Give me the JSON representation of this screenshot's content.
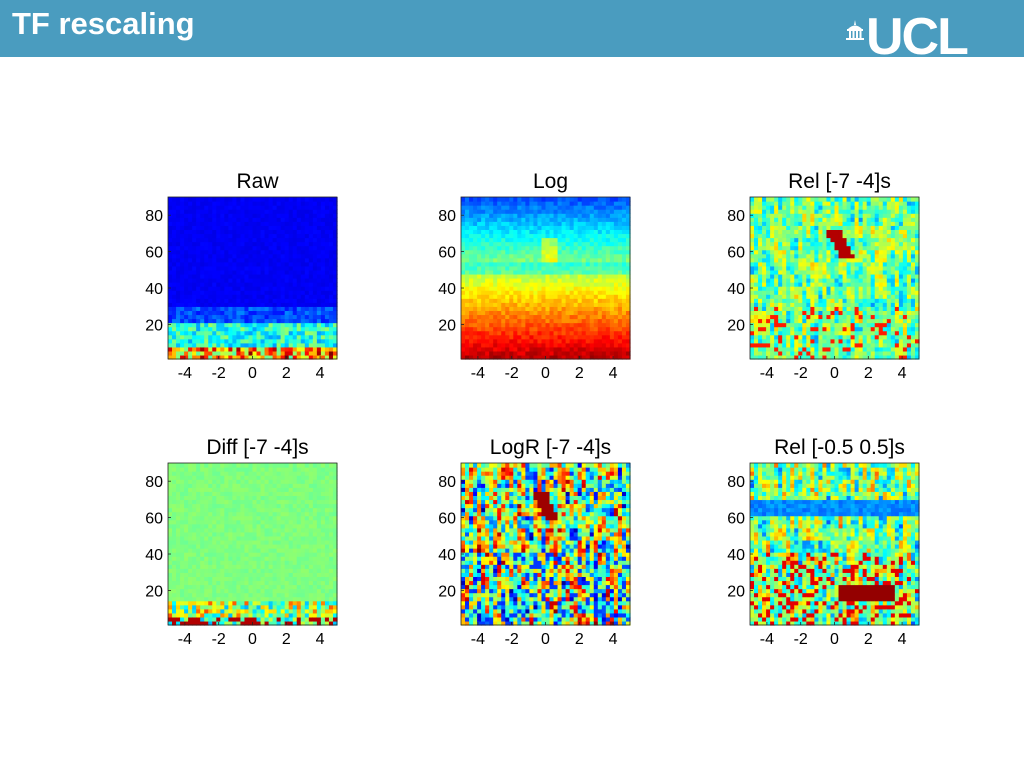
{
  "slide": {
    "title": "TF rescaling",
    "logo_text": "UCL"
  },
  "colors": {
    "header": "#4a9cbf",
    "header_text": "#ffffff",
    "colormap": "jet"
  },
  "chart_data": [
    {
      "type": "heatmap",
      "title": "Raw",
      "x_ticks": [
        "-4",
        "-2",
        "0",
        "2",
        "4"
      ],
      "y_ticks": [
        "20",
        "40",
        "60",
        "80"
      ],
      "xlim": [
        -5,
        5
      ],
      "ylim": [
        1,
        90
      ],
      "x_values": [
        -4,
        -2,
        0,
        2,
        4
      ],
      "y_values": [
        20,
        40,
        60,
        80
      ],
      "pattern": "raw"
    },
    {
      "type": "heatmap",
      "title": "Log",
      "x_ticks": [
        "-4",
        "-2",
        "0",
        "2",
        "4"
      ],
      "y_ticks": [
        "20",
        "40",
        "60",
        "80"
      ],
      "xlim": [
        -5,
        5
      ],
      "ylim": [
        1,
        90
      ],
      "x_values": [
        -4,
        -2,
        0,
        2,
        4
      ],
      "y_values": [
        20,
        40,
        60,
        80
      ],
      "pattern": "log"
    },
    {
      "type": "heatmap",
      "title": "Rel [-7 -4]s",
      "x_ticks": [
        "-4",
        "-2",
        "0",
        "2",
        "4"
      ],
      "y_ticks": [
        "20",
        "40",
        "60",
        "80"
      ],
      "xlim": [
        -5,
        5
      ],
      "ylim": [
        1,
        90
      ],
      "x_values": [
        -4,
        -2,
        0,
        2,
        4
      ],
      "y_values": [
        20,
        40,
        60,
        80
      ],
      "pattern": "rel"
    },
    {
      "type": "heatmap",
      "title": "Diff [-7 -4]s",
      "x_ticks": [
        "-4",
        "-2",
        "0",
        "2",
        "4"
      ],
      "y_ticks": [
        "20",
        "40",
        "60",
        "80"
      ],
      "xlim": [
        -5,
        5
      ],
      "ylim": [
        1,
        90
      ],
      "x_values": [
        -4,
        -2,
        0,
        2,
        4
      ],
      "y_values": [
        20,
        40,
        60,
        80
      ],
      "pattern": "diff"
    },
    {
      "type": "heatmap",
      "title": "LogR [-7 -4]s",
      "x_ticks": [
        "-4",
        "-2",
        "0",
        "2",
        "4"
      ],
      "y_ticks": [
        "20",
        "40",
        "60",
        "80"
      ],
      "xlim": [
        -5,
        5
      ],
      "ylim": [
        1,
        90
      ],
      "x_values": [
        -4,
        -2,
        0,
        2,
        4
      ],
      "y_values": [
        20,
        40,
        60,
        80
      ],
      "pattern": "logr"
    },
    {
      "type": "heatmap",
      "title": "Rel [-0.5 0.5]s",
      "x_ticks": [
        "-4",
        "-2",
        "0",
        "2",
        "4"
      ],
      "y_ticks": [
        "20",
        "40",
        "60",
        "80"
      ],
      "xlim": [
        -5,
        5
      ],
      "ylim": [
        1,
        90
      ],
      "x_values": [
        -4,
        -2,
        0,
        2,
        4
      ],
      "y_values": [
        20,
        40,
        60,
        80
      ],
      "pattern": "rel2"
    }
  ]
}
